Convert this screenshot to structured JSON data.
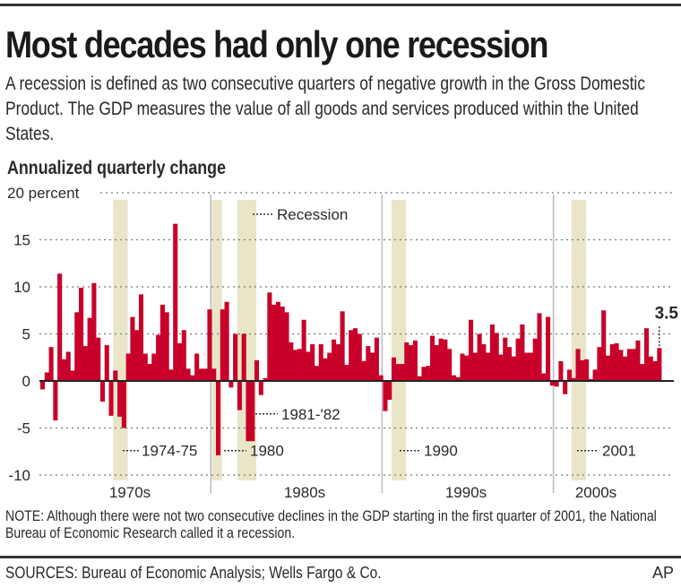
{
  "header": {
    "title": "Most decades had only one recession",
    "subtitle": "A recession is defined as two consecutive quarters of negative growth in the Gross Domestic Product. The GDP measures the value of all goods and services produced within the United States.",
    "unit_label": "Annualized quarterly change"
  },
  "footer": {
    "note": "NOTE: Although there were not two consecutive declines in the GDP starting in the first quarter of 2001, the National Bureau of Economic Research called it a recession.",
    "sources": "SOURCES: Bureau of Economic Analysis; Wells Fargo & Co.",
    "credit": "AP"
  },
  "colors": {
    "bar": "#c8002a",
    "recession_band": "#e9e6c8",
    "grid": "#777777",
    "zero_line": "#222222",
    "decade_line": "#b9bcc4"
  },
  "chart_data": {
    "type": "bar",
    "title": "Most decades had only one recession",
    "ylabel": "Annualized quarterly change (percent)",
    "xlabel": "",
    "ylim": [
      -10,
      20
    ],
    "yticks": [
      20,
      15,
      10,
      5,
      0,
      -5,
      -10
    ],
    "ytick_labels": [
      "20 percent",
      "15",
      "10",
      "5",
      "0",
      "-5",
      "-10"
    ],
    "grid": true,
    "x_start": "1970 Q1",
    "decade_labels": [
      "1970s",
      "1980s",
      "1990s",
      "2000s"
    ],
    "decade_start_quarter_index": [
      0,
      40,
      80,
      120
    ],
    "values": [
      -0.9,
      0.9,
      3.6,
      -4.2,
      11.4,
      2.3,
      3.1,
      1.1,
      7.3,
      9.9,
      3.7,
      6.7,
      10.4,
      4.6,
      -2.2,
      3.8,
      -3.7,
      1.1,
      -3.8,
      -5.0,
      2.9,
      6.8,
      5.4,
      9.2,
      2.9,
      1.8,
      2.9,
      4.9,
      8.1,
      7.3,
      1.2,
      16.7,
      4.0,
      5.4,
      1.3,
      0.6,
      2.9,
      1.3,
      1.3,
      7.6,
      1.3,
      -7.9,
      7.6,
      8.4,
      -0.7,
      5.0,
      -3.1,
      5.0,
      -6.4,
      -6.4,
      2.2,
      -1.5,
      0.3,
      9.4,
      8.1,
      8.4,
      7.9,
      7.3,
      4.1,
      3.3,
      3.4,
      6.5,
      3.1,
      3.9,
      1.6,
      3.9,
      2.4,
      3.0,
      4.4,
      3.9,
      7.4,
      1.7,
      5.4,
      5.6,
      5.0,
      2.1,
      3.7,
      3.0,
      4.6,
      0.6,
      -3.2,
      -2.0,
      2.5,
      1.8,
      1.8,
      4.1,
      3.8,
      4.3,
      0.5,
      1.5,
      1.6,
      4.8,
      3.8,
      4.5,
      4.4,
      3.4,
      0.6,
      0.4,
      2.9,
      2.7,
      6.5,
      3.0,
      5.0,
      3.9,
      3.0,
      6.0,
      5.1,
      2.8,
      4.6,
      3.6,
      2.6,
      4.5,
      6.0,
      3.0,
      3.0,
      4.5,
      7.2,
      0.8,
      6.8,
      -0.5,
      -0.6,
      2.1,
      -1.4,
      1.2,
      0.3,
      3.4,
      2.2,
      2.3,
      0.2,
      1.2,
      3.6,
      7.5,
      2.7,
      3.9,
      4.0,
      3.3,
      2.6,
      3.4,
      3.4,
      4.3,
      1.8,
      5.6,
      2.6,
      2.1,
      3.5
    ],
    "recessions": [
      {
        "label": "1974-75",
        "start_index": 17,
        "end_index": 20
      },
      {
        "label": "1980",
        "start_index": 40,
        "end_index": 42
      },
      {
        "label": "1981-'82",
        "start_index": 46,
        "end_index": 50
      },
      {
        "label": "1990",
        "start_index": 82,
        "end_index": 85
      },
      {
        "label": "2001",
        "start_index": 124,
        "end_index": 127
      }
    ],
    "recession_annotations_as_printed": [
      {
        "text": "1974-75",
        "band": 0
      },
      {
        "text": "1980",
        "band": 2
      },
      {
        "text": "1981-'82",
        "band": 2
      },
      {
        "text": "1990",
        "band": 3
      },
      {
        "text": "2001",
        "band": 4
      }
    ],
    "legend": {
      "label": "Recession",
      "placement": "top-center"
    },
    "last_value_label": "3.5"
  }
}
